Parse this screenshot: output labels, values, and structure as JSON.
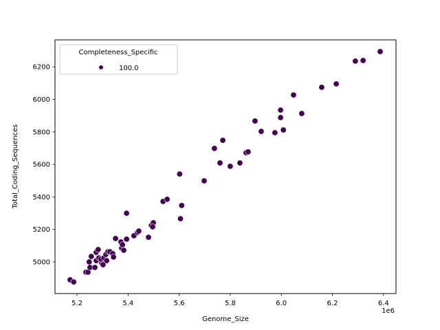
{
  "chart_data": {
    "type": "scatter",
    "title": "",
    "xlabel": "Genome_Size",
    "ylabel": "Total_Coding_Sequences",
    "x_offset_label": "1e6",
    "xlim": [
      5.125,
      6.45
    ],
    "ylim": [
      4820,
      6340
    ],
    "x_ticks": [
      5.2,
      5.4,
      5.6,
      5.8,
      6.0,
      6.2,
      6.4
    ],
    "x_tick_labels": [
      "5.2",
      "5.4",
      "5.6",
      "5.8",
      "6.0",
      "6.2",
      "6.4"
    ],
    "y_ticks": [
      5000,
      5200,
      5400,
      5600,
      5800,
      6000,
      6200
    ],
    "y_tick_labels": [
      "5000",
      "5200",
      "5400",
      "5600",
      "5800",
      "6000",
      "6200"
    ],
    "grid": false,
    "legend": {
      "title": "Completeness_Specific",
      "position": "upper left",
      "entries": [
        {
          "label": "100.0",
          "color": "#440154"
        }
      ]
    },
    "series": [
      {
        "name": "100.0",
        "color": "#440154",
        "x": [
          5.173,
          5.187,
          5.235,
          5.243,
          5.248,
          5.256,
          5.251,
          5.27,
          5.275,
          5.283,
          5.275,
          5.286,
          5.297,
          5.294,
          5.305,
          5.313,
          5.321,
          5.329,
          5.34,
          5.343,
          5.316,
          5.302,
          5.351,
          5.372,
          5.375,
          5.383,
          5.378,
          5.394,
          5.394,
          5.423,
          5.437,
          5.442,
          5.48,
          5.491,
          5.499,
          5.496,
          5.537,
          5.553,
          5.602,
          5.61,
          5.605,
          5.698,
          5.738,
          5.76,
          5.771,
          5.8,
          5.838,
          5.862,
          5.87,
          5.897,
          5.921,
          5.975,
          5.997,
          5.997,
          6.008,
          6.048,
          6.08,
          6.158,
          6.215,
          6.29,
          6.32,
          6.387
        ],
        "y": [
          4890,
          4877,
          4937,
          4937,
          5000,
          5034,
          4966,
          4966,
          5059,
          5076,
          5008,
          5025,
          4992,
          5017,
          5025,
          5046,
          5063,
          5063,
          5051,
          5030,
          5008,
          4983,
          5144,
          5123,
          5085,
          5072,
          5106,
          5140,
          5300,
          5161,
          5182,
          5190,
          5152,
          5224,
          5241,
          5216,
          5372,
          5385,
          5541,
          5347,
          5266,
          5499,
          5698,
          5609,
          5748,
          5588,
          5609,
          5672,
          5677,
          5867,
          5803,
          5795,
          5934,
          5888,
          5812,
          6027,
          5913,
          6074,
          6095,
          6235,
          6239,
          6294
        ]
      }
    ]
  },
  "plot": {
    "xlabel": "Genome_Size",
    "ylabel": "Total_Coding_Sequences",
    "offset": "1e6",
    "legend_title": "Completeness_Specific",
    "legend_label": "100.0"
  }
}
